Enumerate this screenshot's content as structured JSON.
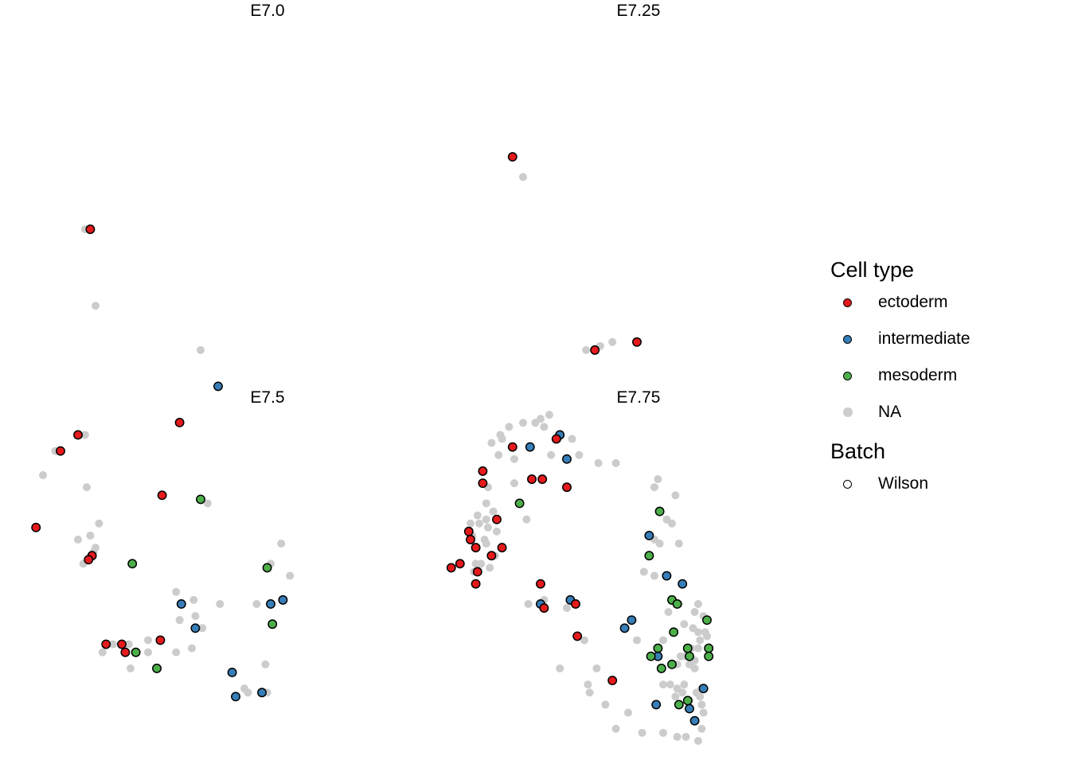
{
  "chart_data": {
    "type": "scatter",
    "facets": [
      {
        "label": "E7.0",
        "na": [
          [
            -0.06,
            0.92
          ],
          [
            0.0,
            0.73
          ],
          [
            0.6,
            0.62
          ]
        ],
        "points": [
          {
            "type": "ectoderm",
            "x": -0.03,
            "y": 0.92
          },
          {
            "type": "intermediate",
            "x": 0.7,
            "y": 0.53
          },
          {
            "type": "ectoderm",
            "x": 0.48,
            "y": 0.44
          }
        ]
      },
      {
        "label": "E7.25",
        "na": [
          [
            0.35,
            1.05
          ],
          [
            0.86,
            0.64
          ],
          [
            0.79,
            0.63
          ],
          [
            0.71,
            0.62
          ]
        ],
        "points": [
          {
            "type": "ectoderm",
            "x": 0.29,
            "y": 1.1
          },
          {
            "type": "ectoderm",
            "x": 1.0,
            "y": 0.64
          },
          {
            "type": "ectoderm",
            "x": 0.76,
            "y": 0.62
          }
        ]
      },
      {
        "label": "E7.5",
        "na": [
          [
            -0.06,
            1.37
          ],
          [
            -0.23,
            1.33
          ],
          [
            -0.3,
            1.27
          ],
          [
            -0.05,
            1.24
          ],
          [
            0.64,
            1.2
          ],
          [
            0.02,
            1.15
          ],
          [
            -0.03,
            1.12
          ],
          [
            -0.1,
            1.11
          ],
          [
            1.06,
            1.1
          ],
          [
            0.0,
            1.09
          ],
          [
            -0.01,
            1.08
          ],
          [
            -0.07,
            1.05
          ],
          [
            1.0,
            1.05
          ],
          [
            1.11,
            1.02
          ],
          [
            0.46,
            0.98
          ],
          [
            0.56,
            0.96
          ],
          [
            0.71,
            0.95
          ],
          [
            0.92,
            0.95
          ],
          [
            0.57,
            0.92
          ],
          [
            0.48,
            0.91
          ],
          [
            0.61,
            0.89
          ],
          [
            0.1,
            0.85
          ],
          [
            0.3,
            0.86
          ],
          [
            0.19,
            0.85
          ],
          [
            0.04,
            0.83
          ],
          [
            0.3,
            0.83
          ],
          [
            0.55,
            0.84
          ],
          [
            0.46,
            0.83
          ],
          [
            0.2,
            0.79
          ],
          [
            0.97,
            0.8
          ],
          [
            0.85,
            0.74
          ],
          [
            0.87,
            0.73
          ],
          [
            0.98,
            0.73
          ]
        ],
        "points": [
          {
            "type": "ectoderm",
            "x": -0.1,
            "y": 1.37
          },
          {
            "type": "ectoderm",
            "x": -0.2,
            "y": 1.33
          },
          {
            "type": "ectoderm",
            "x": 0.38,
            "y": 1.22
          },
          {
            "type": "mesoderm",
            "x": 0.6,
            "y": 1.21
          },
          {
            "type": "ectoderm",
            "x": -0.34,
            "y": 1.14
          },
          {
            "type": "ectoderm",
            "x": -0.02,
            "y": 1.07
          },
          {
            "type": "ectoderm",
            "x": -0.04,
            "y": 1.06
          },
          {
            "type": "mesoderm",
            "x": 0.21,
            "y": 1.05
          },
          {
            "type": "mesoderm",
            "x": 0.98,
            "y": 1.04
          },
          {
            "type": "intermediate",
            "x": 0.49,
            "y": 0.95
          },
          {
            "type": "intermediate",
            "x": 1.0,
            "y": 0.95
          },
          {
            "type": "intermediate",
            "x": 1.07,
            "y": 0.96
          },
          {
            "type": "mesoderm",
            "x": 1.01,
            "y": 0.9
          },
          {
            "type": "intermediate",
            "x": 0.57,
            "y": 0.89
          },
          {
            "type": "ectoderm",
            "x": 0.37,
            "y": 0.86
          },
          {
            "type": "ectoderm",
            "x": 0.06,
            "y": 0.85
          },
          {
            "type": "ectoderm",
            "x": 0.15,
            "y": 0.85
          },
          {
            "type": "ectoderm",
            "x": 0.17,
            "y": 0.83
          },
          {
            "type": "mesoderm",
            "x": 0.23,
            "y": 0.83
          },
          {
            "type": "mesoderm",
            "x": 0.35,
            "y": 0.79
          },
          {
            "type": "intermediate",
            "x": 0.78,
            "y": 0.78
          },
          {
            "type": "intermediate",
            "x": 0.95,
            "y": 0.73
          },
          {
            "type": "intermediate",
            "x": 0.8,
            "y": 0.72
          }
        ]
      },
      {
        "label": "E7.75",
        "na": [
          [
            0.5,
            1.42
          ],
          [
            0.45,
            1.41
          ],
          [
            0.42,
            1.4
          ],
          [
            0.35,
            1.4
          ],
          [
            0.27,
            1.39
          ],
          [
            0.47,
            1.39
          ],
          [
            0.22,
            1.37
          ],
          [
            0.23,
            1.36
          ],
          [
            0.55,
            1.36
          ],
          [
            0.63,
            1.36
          ],
          [
            0.17,
            1.35
          ],
          [
            0.21,
            1.32
          ],
          [
            0.67,
            1.32
          ],
          [
            0.3,
            1.31
          ],
          [
            0.51,
            1.32
          ],
          [
            0.78,
            1.3
          ],
          [
            0.88,
            1.3
          ],
          [
            1.12,
            1.26
          ],
          [
            1.1,
            1.24
          ],
          [
            0.3,
            1.25
          ],
          [
            0.15,
            1.24
          ],
          [
            1.22,
            1.22
          ],
          [
            0.14,
            1.2
          ],
          [
            0.18,
            1.18
          ],
          [
            0.09,
            1.17
          ],
          [
            0.14,
            1.16
          ],
          [
            0.1,
            1.15
          ],
          [
            0.37,
            1.16
          ],
          [
            1.17,
            1.16
          ],
          [
            1.2,
            1.15
          ],
          [
            0.05,
            1.15
          ],
          [
            0.15,
            1.14
          ],
          [
            0.2,
            1.13
          ],
          [
            0.06,
            1.12
          ],
          [
            0.13,
            1.11
          ],
          [
            1.1,
            1.11
          ],
          [
            1.13,
            1.1
          ],
          [
            1.24,
            1.1
          ],
          [
            0.14,
            1.1
          ],
          [
            0.19,
            1.07
          ],
          [
            0.08,
            1.05
          ],
          [
            0.11,
            1.05
          ],
          [
            0.16,
            1.04
          ],
          [
            0.07,
            1.03
          ],
          [
            1.1,
            1.02
          ],
          [
            1.04,
            1.03
          ],
          [
            0.47,
            0.96
          ],
          [
            0.38,
            0.95
          ],
          [
            0.6,
            0.94
          ],
          [
            1.24,
            0.95
          ],
          [
            1.35,
            0.95
          ],
          [
            1.18,
            0.93
          ],
          [
            1.33,
            0.93
          ],
          [
            1.38,
            0.92
          ],
          [
            1.27,
            0.9
          ],
          [
            1.32,
            0.89
          ],
          [
            1.35,
            0.88
          ],
          [
            1.39,
            0.88
          ],
          [
            1.4,
            0.87
          ],
          [
            0.7,
            0.86
          ],
          [
            1.0,
            0.86
          ],
          [
            1.15,
            0.86
          ],
          [
            1.36,
            0.86
          ],
          [
            1.35,
            0.84
          ],
          [
            1.31,
            0.84
          ],
          [
            1.29,
            0.83
          ],
          [
            1.28,
            0.82
          ],
          [
            1.25,
            0.82
          ],
          [
            1.33,
            0.81
          ],
          [
            1.3,
            0.8
          ],
          [
            1.33,
            0.79
          ],
          [
            0.56,
            0.79
          ],
          [
            0.77,
            0.79
          ],
          [
            1.23,
            0.8
          ],
          [
            0.72,
            0.75
          ],
          [
            1.15,
            0.75
          ],
          [
            1.19,
            0.75
          ],
          [
            1.23,
            0.74
          ],
          [
            1.27,
            0.75
          ],
          [
            1.26,
            0.73
          ],
          [
            1.34,
            0.73
          ],
          [
            1.37,
            0.74
          ],
          [
            1.22,
            0.72
          ],
          [
            1.3,
            0.71
          ],
          [
            1.36,
            0.72
          ],
          [
            1.37,
            0.7
          ],
          [
            1.38,
            0.68
          ],
          [
            0.73,
            0.73
          ],
          [
            0.82,
            0.7
          ],
          [
            0.95,
            0.68
          ],
          [
            0.88,
            0.64
          ],
          [
            1.15,
            0.63
          ],
          [
            1.23,
            0.62
          ],
          [
            1.28,
            0.62
          ],
          [
            1.35,
            0.61
          ],
          [
            1.37,
            0.64
          ],
          [
            1.03,
            0.63
          ]
        ],
        "points": [
          {
            "type": "intermediate",
            "x": 0.56,
            "y": 1.37
          },
          {
            "type": "ectoderm",
            "x": 0.54,
            "y": 1.36
          },
          {
            "type": "ectoderm",
            "x": 0.29,
            "y": 1.34
          },
          {
            "type": "intermediate",
            "x": 0.39,
            "y": 1.34
          },
          {
            "type": "intermediate",
            "x": 0.6,
            "y": 1.31
          },
          {
            "type": "ectoderm",
            "x": 0.12,
            "y": 1.28
          },
          {
            "type": "ectoderm",
            "x": 0.12,
            "y": 1.25
          },
          {
            "type": "ectoderm",
            "x": 0.4,
            "y": 1.26
          },
          {
            "type": "ectoderm",
            "x": 0.46,
            "y": 1.26
          },
          {
            "type": "ectoderm",
            "x": 0.6,
            "y": 1.24
          },
          {
            "type": "mesoderm",
            "x": 0.33,
            "y": 1.2
          },
          {
            "type": "mesoderm",
            "x": 1.13,
            "y": 1.18
          },
          {
            "type": "ectoderm",
            "x": 0.2,
            "y": 1.16
          },
          {
            "type": "intermediate",
            "x": 1.07,
            "y": 1.12
          },
          {
            "type": "ectoderm",
            "x": 0.04,
            "y": 1.13
          },
          {
            "type": "ectoderm",
            "x": 0.05,
            "y": 1.11
          },
          {
            "type": "ectoderm",
            "x": 0.08,
            "y": 1.09
          },
          {
            "type": "ectoderm",
            "x": 0.23,
            "y": 1.09
          },
          {
            "type": "ectoderm",
            "x": 0.17,
            "y": 1.07
          },
          {
            "type": "mesoderm",
            "x": 1.07,
            "y": 1.07
          },
          {
            "type": "ectoderm",
            "x": -0.06,
            "y": 1.04
          },
          {
            "type": "ectoderm",
            "x": -0.01,
            "y": 1.05
          },
          {
            "type": "ectoderm",
            "x": 0.09,
            "y": 1.03
          },
          {
            "type": "ectoderm",
            "x": 0.08,
            "y": 1.0
          },
          {
            "type": "intermediate",
            "x": 1.17,
            "y": 1.02
          },
          {
            "type": "intermediate",
            "x": 1.26,
            "y": 1.0
          },
          {
            "type": "ectoderm",
            "x": 0.45,
            "y": 1.0
          },
          {
            "type": "mesoderm",
            "x": 1.2,
            "y": 0.96
          },
          {
            "type": "mesoderm",
            "x": 1.23,
            "y": 0.95
          },
          {
            "type": "intermediate",
            "x": 0.45,
            "y": 0.95
          },
          {
            "type": "ectoderm",
            "x": 0.47,
            "y": 0.94
          },
          {
            "type": "intermediate",
            "x": 0.62,
            "y": 0.96
          },
          {
            "type": "ectoderm",
            "x": 0.65,
            "y": 0.95
          },
          {
            "type": "mesoderm",
            "x": 1.4,
            "y": 0.91
          },
          {
            "type": "intermediate",
            "x": 0.97,
            "y": 0.91
          },
          {
            "type": "intermediate",
            "x": 0.93,
            "y": 0.89
          },
          {
            "type": "mesoderm",
            "x": 1.21,
            "y": 0.88
          },
          {
            "type": "ectoderm",
            "x": 0.66,
            "y": 0.87
          },
          {
            "type": "mesoderm",
            "x": 1.12,
            "y": 0.84
          },
          {
            "type": "mesoderm",
            "x": 1.29,
            "y": 0.84
          },
          {
            "type": "mesoderm",
            "x": 1.41,
            "y": 0.84
          },
          {
            "type": "intermediate",
            "x": 1.12,
            "y": 0.82
          },
          {
            "type": "mesoderm",
            "x": 1.3,
            "y": 0.82
          },
          {
            "type": "mesoderm",
            "x": 1.08,
            "y": 0.82
          },
          {
            "type": "mesoderm",
            "x": 1.41,
            "y": 0.82
          },
          {
            "type": "mesoderm",
            "x": 1.14,
            "y": 0.79
          },
          {
            "type": "mesoderm",
            "x": 1.2,
            "y": 0.8
          },
          {
            "type": "ectoderm",
            "x": 0.86,
            "y": 0.76
          },
          {
            "type": "intermediate",
            "x": 1.38,
            "y": 0.74
          },
          {
            "type": "intermediate",
            "x": 1.11,
            "y": 0.7
          },
          {
            "type": "mesoderm",
            "x": 1.29,
            "y": 0.71
          },
          {
            "type": "mesoderm",
            "x": 1.24,
            "y": 0.7
          },
          {
            "type": "intermediate",
            "x": 1.3,
            "y": 0.69
          },
          {
            "type": "intermediate",
            "x": 1.33,
            "y": 0.66
          }
        ]
      }
    ],
    "legend": {
      "position": "right",
      "sections": [
        {
          "title": "Cell type",
          "items": [
            {
              "label": "ectoderm",
              "color": "#E41A1C"
            },
            {
              "label": "intermediate",
              "color": "#377EB8"
            },
            {
              "label": "mesoderm",
              "color": "#4DAF4A"
            },
            {
              "label": "NA",
              "color": "#CCCCCC"
            }
          ]
        },
        {
          "title": "Batch",
          "items": [
            {
              "label": "Wilson",
              "shape": "open-circle"
            }
          ]
        }
      ]
    },
    "colors": {
      "ectoderm": "#E41A1C",
      "intermediate": "#377EB8",
      "mesoderm": "#4DAF4A",
      "na": "#CCCCCC"
    },
    "grid": false,
    "axes": false
  }
}
